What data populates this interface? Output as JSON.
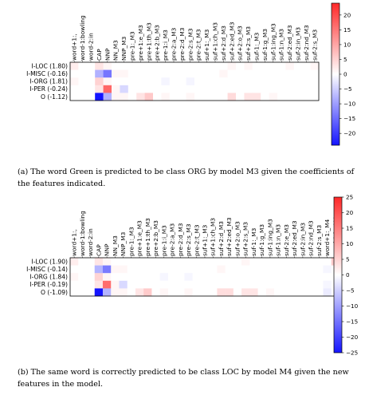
{
  "figures": [
    {
      "id": "a",
      "caption": "(a) The word Green is predicted to be class ORG by model M3 given the coefficients of the features indicated.",
      "chart_data": {
        "type": "heatmap",
        "columns": [
          "word+1:,",
          "word-1:bowling",
          "word-2:in",
          "CAP",
          "NNP",
          "NN_M3",
          "NNP_M3",
          "pre-1:_M3",
          "pre+1:e_M3",
          "pre+1:th_M3",
          "pre+2:b_M3",
          "pre-1:i_M3",
          "pre-2:a_M3",
          "pre-2:d_M3",
          "pre-2:s_M3",
          "pre-2:t_M3",
          "suf+1:_M3",
          "suf+1:ch_M3",
          "suf+2:d_M3",
          "suf+2:ed_M3",
          "suf+2:o_M3",
          "suf+2:s_M3",
          "suf-1:_M3",
          "suf-1:g_M3",
          "suf-1:ing_M3",
          "suf-1:n_M3",
          "suf-2:ed_M3",
          "suf-2:in_M3",
          "suf-2:nd_M3",
          "suf-2:s_M3"
        ],
        "rows": [
          "I-LOC (1.80)",
          "I-MISC (-0.16)",
          "I-ORG (1.81)",
          "I-PER (-0.24)",
          "O (-1.12)"
        ],
        "values": [
          [
            2,
            0,
            0,
            3,
            1,
            0,
            0,
            0,
            0,
            0,
            0,
            0,
            0,
            0,
            0,
            0,
            0,
            0,
            0,
            1,
            0,
            1,
            0,
            0,
            0,
            0,
            1,
            0,
            0,
            1
          ],
          [
            0,
            0,
            0,
            -8,
            -14,
            1,
            1,
            0,
            0,
            0,
            0,
            0,
            0,
            0,
            0,
            0,
            0,
            0,
            1,
            0,
            0,
            0,
            0,
            0,
            0,
            0,
            0,
            0,
            0,
            0
          ],
          [
            1,
            0,
            0,
            5,
            1,
            0,
            0,
            0,
            0,
            0,
            0,
            -1,
            0,
            0,
            -1,
            0,
            0,
            0,
            0,
            0,
            0,
            0,
            0,
            0,
            0,
            0,
            0,
            0,
            0,
            0
          ],
          [
            0,
            0,
            0,
            3,
            17,
            1,
            -4,
            0,
            0,
            0,
            0,
            0,
            0,
            0,
            0,
            0,
            0,
            0,
            0,
            0,
            0,
            0,
            0,
            0,
            0,
            0,
            0,
            0,
            0,
            0
          ],
          [
            0,
            0,
            0,
            -25,
            -8,
            1,
            1,
            0,
            3,
            6,
            0,
            1,
            0,
            0,
            1,
            0,
            0,
            0,
            0,
            4,
            0,
            3,
            3,
            0,
            1,
            0,
            0,
            0,
            0,
            0
          ]
        ],
        "colorbar": {
          "ticks": [
            "20",
            "15",
            "10",
            "5",
            "0",
            "−5",
            "−10",
            "−15",
            "−20"
          ],
          "min": -24,
          "max": 24
        }
      }
    },
    {
      "id": "b",
      "caption": "(b) The same word is correctly predicted to be class LOC by model M4 given the new features in the model.",
      "chart_data": {
        "type": "heatmap",
        "columns": [
          "word+1:,",
          "word-1:bowling",
          "word-2:in",
          "CAP",
          "NNP",
          "NN_M3",
          "NNP_M3",
          "pre-1:_M3",
          "pre+1:e_M3",
          "pre+1:th_M3",
          "pre+2:b_M3",
          "pre-1:i_M3",
          "pre-2:a_M3",
          "pre-2:d_M3",
          "pre-2:s_M3",
          "pre-2:t_M3",
          "suf+1:_M3",
          "suf+1:ch_M3",
          "suf+2:d_M3",
          "suf+2:ed_M3",
          "suf+2:o_M3",
          "suf+2:s_M3",
          "suf-1:_M3",
          "suf-1:g_M3",
          "suf-1:ing_M3",
          "suf-1:n_M3",
          "suf-2:e_M3",
          "suf-2:ed_M3",
          "suf-2:in_M3",
          "suf-2:nd_M3",
          "suf-2:s_M3",
          "word+1:_M4",
          "word-1:in_M4"
        ],
        "rows": [
          "I-LOC (1.90)",
          "I-MISC (-0.14)",
          "I-ORG (1.84)",
          "I-PER (-0.19)",
          "O (-1.09)"
        ],
        "values": [
          [
            2,
            0,
            0,
            3,
            1,
            0,
            0,
            0,
            0,
            0,
            0,
            0,
            0,
            0,
            0,
            0,
            0,
            0,
            0,
            0,
            0,
            1,
            0,
            0,
            0,
            0,
            0,
            0,
            0,
            0,
            0,
            0,
            6
          ],
          [
            0,
            0,
            0,
            -8,
            -14,
            1,
            1,
            0,
            0,
            0,
            0,
            0,
            0,
            0,
            0,
            0,
            0,
            0,
            1,
            0,
            0,
            0,
            0,
            0,
            0,
            0,
            0,
            0,
            0,
            0,
            0,
            -1,
            0
          ],
          [
            1,
            0,
            0,
            5,
            1,
            0,
            0,
            0,
            0,
            0,
            0,
            -1,
            0,
            0,
            -1,
            0,
            0,
            0,
            0,
            0,
            0,
            0,
            0,
            0,
            0,
            0,
            0,
            0,
            0,
            0,
            0,
            0,
            0
          ],
          [
            0,
            0,
            0,
            3,
            17,
            1,
            -4,
            0,
            0,
            0,
            0,
            0,
            0,
            0,
            0,
            0,
            0,
            0,
            0,
            0,
            0,
            0,
            0,
            0,
            0,
            0,
            0,
            0,
            0,
            0,
            0,
            -1,
            0
          ],
          [
            0,
            0,
            0,
            -25,
            -8,
            1,
            1,
            0,
            3,
            6,
            0,
            1,
            0,
            0,
            1,
            0,
            0,
            0,
            4,
            4,
            0,
            3,
            3,
            0,
            1,
            0,
            0,
            0,
            0,
            0,
            0,
            -2,
            0
          ]
        ],
        "colorbar": {
          "ticks": [
            "25",
            "20",
            "15",
            "10",
            "5",
            "0",
            "−5",
            "−10",
            "−15",
            "−20",
            "−25"
          ],
          "min": -25,
          "max": 25
        }
      }
    }
  ]
}
